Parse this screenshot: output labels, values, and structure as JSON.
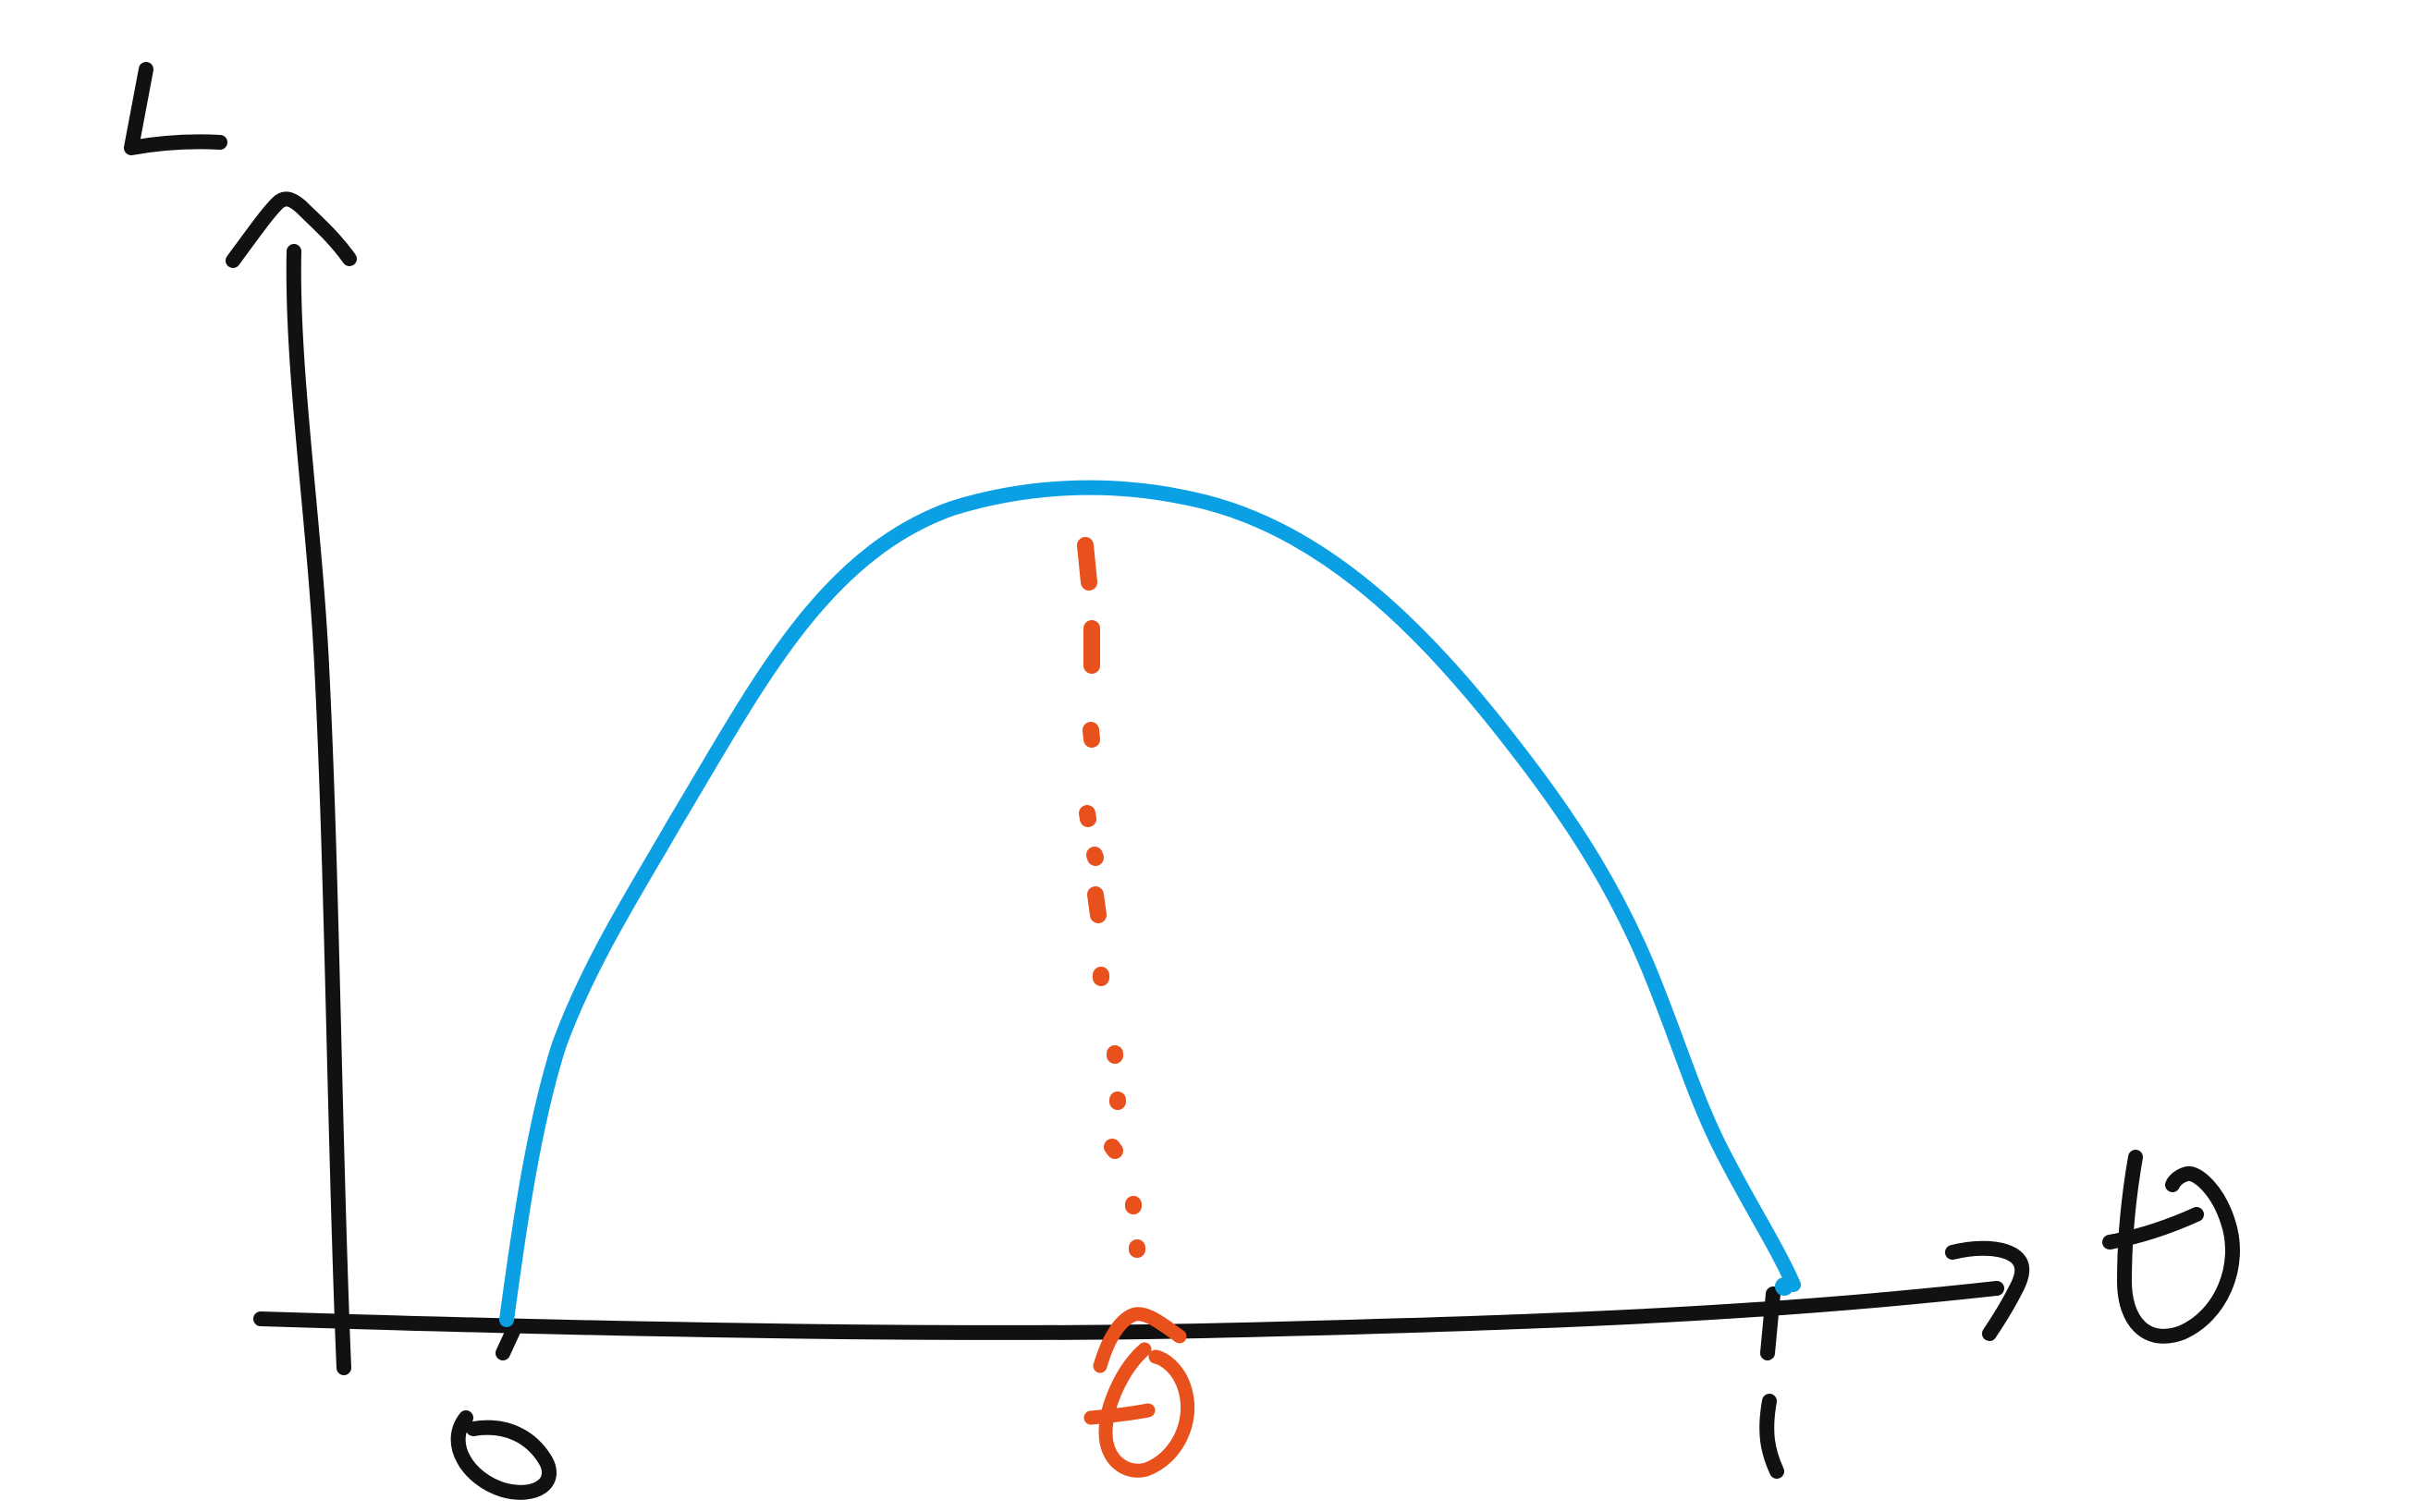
{
  "diagram": {
    "y_axis_label": "L",
    "x_axis_label": "θ",
    "x_tick_start": "0",
    "x_tick_end": "1",
    "peak_label": "θ̂",
    "colors": {
      "axes": "#111111",
      "curve": "#0aa0e3",
      "peak_marker": "#e8501c"
    }
  }
}
